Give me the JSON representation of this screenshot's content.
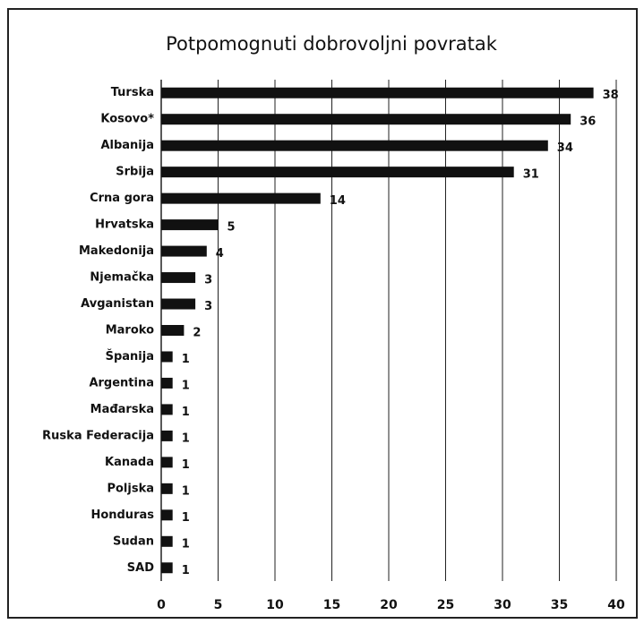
{
  "chart_data": {
    "type": "bar",
    "orientation": "horizontal",
    "title": "Potpomognuti dobrovoljni povratak",
    "categories": [
      "Turska",
      "Kosovo*",
      "Albanija",
      "Srbija",
      "Crna gora",
      "Hrvatska",
      "Makedonija",
      "Njemačka",
      "Avganistan",
      "Maroko",
      "Španija",
      "Argentina",
      "Mađarska",
      "Ruska Federacija",
      "Kanada",
      "Poljska",
      "Honduras",
      "Sudan",
      "SAD"
    ],
    "values": [
      38,
      36,
      34,
      31,
      14,
      5,
      4,
      3,
      3,
      2,
      1,
      1,
      1,
      1,
      1,
      1,
      1,
      1,
      1
    ],
    "color": "#111111",
    "xlim": [
      0,
      40
    ],
    "xticks": [
      0,
      5,
      10,
      15,
      20,
      25,
      30,
      35,
      40
    ],
    "grid": true
  }
}
